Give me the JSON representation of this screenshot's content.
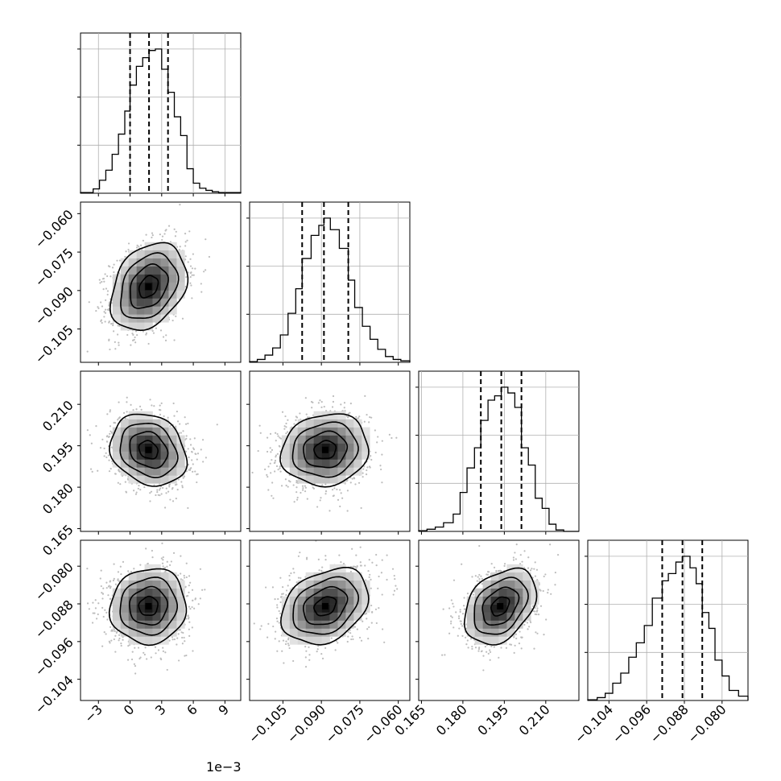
{
  "chart_data": {
    "type": "corner",
    "n_params": 4,
    "params": [
      {
        "range": [
          -0.0047,
          0.0105
        ],
        "ticks": [
          -0.003,
          0.0,
          0.003,
          0.006,
          0.009
        ],
        "tick_labels": [
          "−3",
          "0",
          "3",
          "6",
          "9"
        ],
        "offset_text": "1e−3",
        "mean": 0.00175,
        "sd": 0.0018,
        "quantiles": [
          0.0,
          0.0018,
          0.0036
        ],
        "hist_bin_edges": [
          -0.0047,
          -0.0035,
          -0.0029,
          -0.0023,
          -0.0017,
          -0.0011,
          -0.0005,
          0.0,
          0.0006,
          0.0012,
          0.0018,
          0.0024,
          0.003,
          0.0036,
          0.0042,
          0.0048,
          0.0054,
          0.006,
          0.0066,
          0.0072,
          0.0078,
          0.0084,
          0.0105
        ],
        "hist_values": [
          0.005,
          0.03,
          0.09,
          0.16,
          0.27,
          0.41,
          0.57,
          0.75,
          0.88,
          0.94,
          0.99,
          1.0,
          0.86,
          0.7,
          0.53,
          0.4,
          0.17,
          0.07,
          0.035,
          0.02,
          0.01,
          0.005
        ]
      },
      {
        "range": [
          -0.118,
          -0.0555
        ],
        "ticks": [
          -0.105,
          -0.09,
          -0.075,
          -0.06
        ],
        "tick_labels": [
          "−0.105",
          "−0.090",
          "−0.075",
          "−0.060"
        ],
        "mean": -0.0885,
        "sd": 0.0085,
        "quantiles": [
          -0.0975,
          -0.089,
          -0.0795
        ],
        "hist_bin_edges": [
          -0.118,
          -0.115,
          -0.112,
          -0.109,
          -0.106,
          -0.103,
          -0.1,
          -0.0975,
          -0.094,
          -0.091,
          -0.089,
          -0.0865,
          -0.083,
          -0.0795,
          -0.077,
          -0.074,
          -0.071,
          -0.068,
          -0.065,
          -0.062,
          -0.059,
          -0.0555
        ],
        "hist_values": [
          0.005,
          0.02,
          0.05,
          0.1,
          0.19,
          0.34,
          0.51,
          0.72,
          0.88,
          0.95,
          1.0,
          0.92,
          0.79,
          0.57,
          0.38,
          0.25,
          0.16,
          0.09,
          0.04,
          0.02,
          0.01
        ]
      },
      {
        "range": [
          0.164,
          0.222
        ],
        "ticks": [
          0.165,
          0.18,
          0.195,
          0.21
        ],
        "tick_labels": [
          "0.165",
          "0.180",
          "0.195",
          "0.210"
        ],
        "mean": 0.1935,
        "sd": 0.0065,
        "quantiles": [
          0.1865,
          0.1939,
          0.2012
        ],
        "hist_bin_edges": [
          0.164,
          0.167,
          0.17,
          0.173,
          0.1765,
          0.179,
          0.1815,
          0.1842,
          0.1865,
          0.1891,
          0.1915,
          0.1939,
          0.1963,
          0.1988,
          0.2012,
          0.2037,
          0.2062,
          0.2087,
          0.2112,
          0.2137,
          0.2165,
          0.222
        ],
        "hist_values": [
          0.005,
          0.015,
          0.03,
          0.06,
          0.12,
          0.27,
          0.44,
          0.58,
          0.77,
          0.91,
          0.94,
          1.0,
          0.96,
          0.86,
          0.58,
          0.46,
          0.23,
          0.16,
          0.05,
          0.01,
          0.0
        ]
      },
      {
        "range": [
          -0.1085,
          -0.0745
        ],
        "ticks": [
          -0.104,
          -0.096,
          -0.088,
          -0.08
        ],
        "tick_labels": [
          "−0.104",
          "−0.096",
          "−0.088",
          "−0.080"
        ],
        "mean": -0.0885,
        "sd": 0.004,
        "quantiles": [
          -0.0927,
          -0.0884,
          -0.0842
        ],
        "hist_bin_edges": [
          -0.1085,
          -0.1065,
          -0.1048,
          -0.1032,
          -0.1015,
          -0.0998,
          -0.0982,
          -0.0965,
          -0.0948,
          -0.0927,
          -0.0914,
          -0.0898,
          -0.0884,
          -0.0868,
          -0.0855,
          -0.0842,
          -0.0828,
          -0.0815,
          -0.08,
          -0.0785,
          -0.0765,
          -0.0745
        ],
        "hist_values": [
          0.005,
          0.02,
          0.05,
          0.12,
          0.19,
          0.3,
          0.4,
          0.52,
          0.71,
          0.83,
          0.88,
          0.96,
          1.0,
          0.92,
          0.81,
          0.61,
          0.5,
          0.28,
          0.17,
          0.07,
          0.03
        ]
      }
    ],
    "correlations": [
      [
        1.0,
        0.3,
        -0.2,
        0.05
      ],
      [
        0.3,
        1.0,
        0.1,
        0.3
      ],
      [
        -0.2,
        0.1,
        1.0,
        0.35
      ],
      [
        0.05,
        0.3,
        0.35,
        1.0
      ]
    ],
    "contour_levels_sigma": [
      0.5,
      1.0,
      1.5,
      2.0
    ],
    "grid": true,
    "line_color": "#000000",
    "quantile_style": "dashed",
    "scatter_color": "#bdbdbd"
  }
}
